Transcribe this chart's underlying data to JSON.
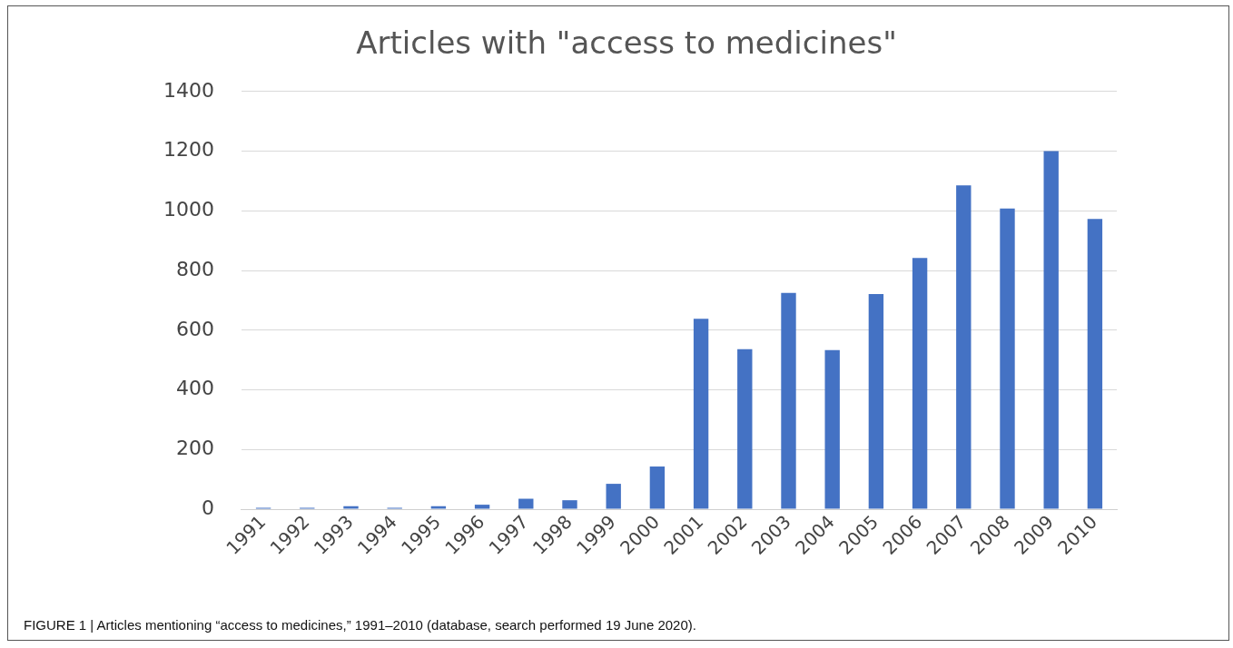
{
  "chart_data": {
    "type": "bar",
    "title": "Articles with \"access to medicines\"",
    "categories": [
      "1991",
      "1992",
      "1993",
      "1994",
      "1995",
      "1996",
      "1997",
      "1998",
      "1999",
      "2000",
      "2001",
      "2002",
      "2003",
      "2004",
      "2005",
      "2006",
      "2007",
      "2008",
      "2009",
      "2010"
    ],
    "values": [
      5,
      5,
      10,
      5,
      10,
      15,
      35,
      30,
      85,
      143,
      638,
      536,
      725,
      533,
      721,
      842,
      1085,
      1008,
      1200,
      973
    ],
    "color": "#4472c4",
    "ylim": [
      0,
      1400
    ],
    "yticks": [
      0,
      200,
      400,
      600,
      800,
      1000,
      1200,
      1400
    ],
    "grid": "y",
    "annotations": [
      "FIGURE 1 | Articles mentioning “access to medicines,” 1991–2010 (database, search performed 19 June 2020)."
    ]
  }
}
